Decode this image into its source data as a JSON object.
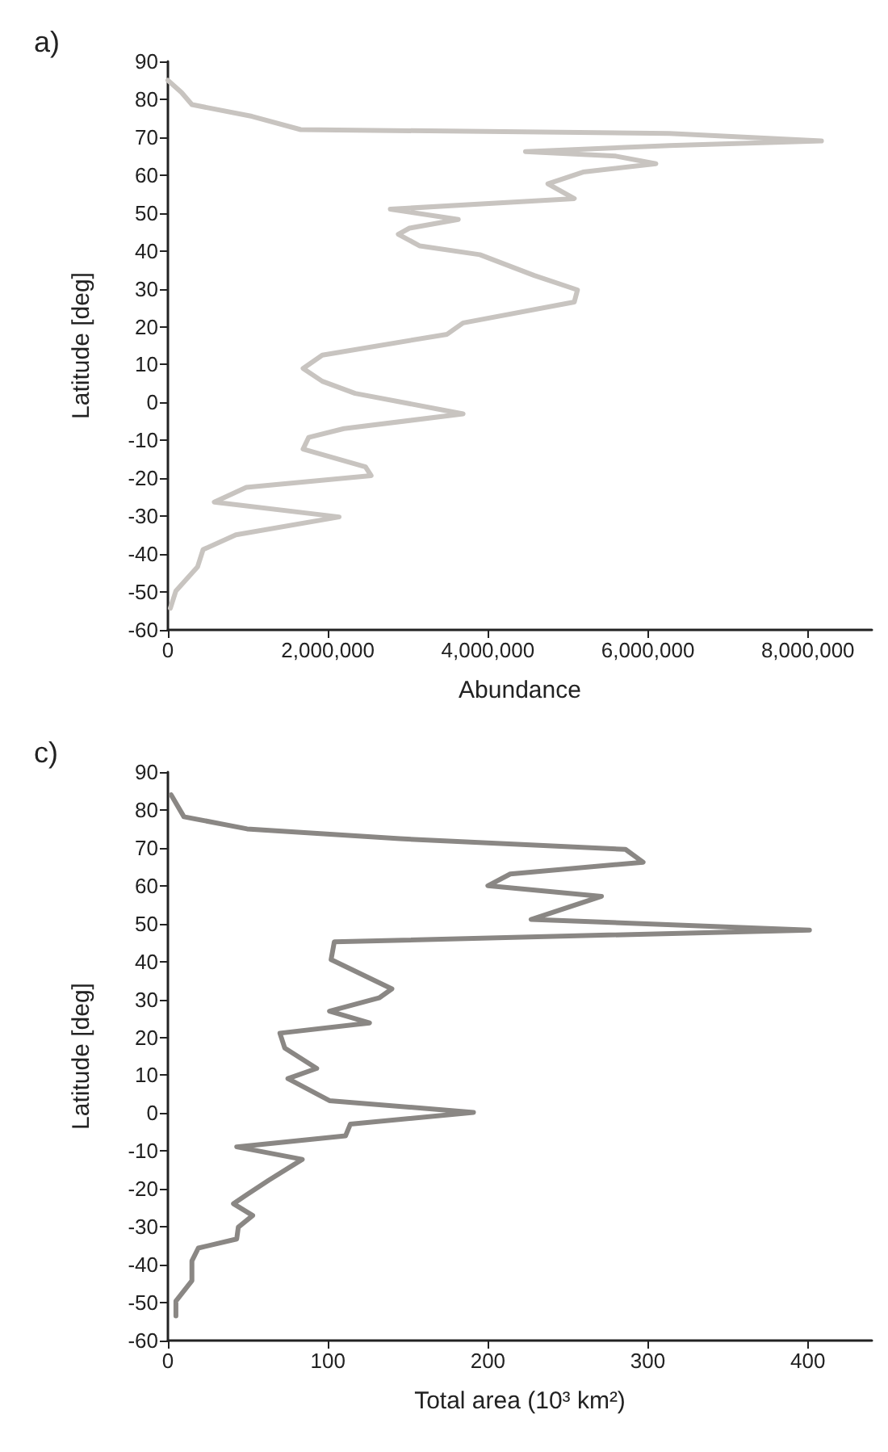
{
  "chart_data": [
    {
      "type": "line",
      "title": "a)",
      "xlabel": "Abundance",
      "ylabel": "Latitude [deg]",
      "marker": "none",
      "line_style": "solid",
      "grid": false,
      "xlim": [
        0,
        8800000
      ],
      "xticks": [
        0,
        {
          "value": 2000000,
          "label": "2,000,000"
        },
        {
          "value": 4000000,
          "label": "4,000,000"
        },
        {
          "value": 6000000,
          "label": "6,000,000"
        },
        {
          "value": 8000000,
          "label": "8,000,000"
        }
      ],
      "ylim": [
        -60,
        90
      ],
      "yticks": [
        -60,
        -50,
        -40,
        -30,
        -20,
        -10,
        0,
        10,
        20,
        30,
        40,
        50,
        60,
        70,
        80,
        90
      ],
      "series": [
        {
          "color": "#c8c4c0",
          "x": [
            0,
            170000,
            300000,
            1050000,
            1660000,
            6270000,
            8170000,
            6270000,
            4470000,
            5600000,
            6100000,
            5190000,
            4750000,
            5080000,
            2780000,
            3630000,
            3020000,
            2880000,
            3150000,
            3900000,
            4580000,
            5120000,
            5080000,
            3690000,
            3490000,
            1930000,
            1690000,
            1930000,
            2340000,
            3690000,
            2200000,
            1760000,
            1690000,
            2470000,
            2540000,
            980000,
            580000,
            2140000,
            850000,
            440000,
            370000,
            100000,
            30000
          ],
          "values": [
            85,
            81.8,
            78.6,
            75.5,
            72,
            71,
            69,
            67.8,
            66.2,
            65,
            63,
            60.8,
            57.7,
            53.8,
            51,
            48.3,
            46,
            44.4,
            41.3,
            39,
            33.5,
            29.7,
            26.5,
            21,
            18,
            12.5,
            9,
            5.6,
            2.4,
            -3,
            -6.9,
            -9.2,
            -12.3,
            -17,
            -19.3,
            -22.4,
            -26.3,
            -30.2,
            -34.9,
            -38.8,
            -43.4,
            -49.7,
            -54.3
          ]
        }
      ]
    },
    {
      "type": "line",
      "title": "c)",
      "xlabel": "Total area (10³ km²)",
      "ylabel": "Latitude [deg]",
      "marker": "none",
      "line_style": "solid",
      "grid": false,
      "xlim": [
        0,
        440
      ],
      "xticks": [
        0,
        100,
        200,
        300,
        400
      ],
      "ylim": [
        -60,
        90
      ],
      "yticks": [
        -60,
        -50,
        -40,
        -30,
        -20,
        -10,
        0,
        10,
        20,
        30,
        40,
        50,
        60,
        70,
        80,
        90
      ],
      "series": [
        {
          "color": "#8a8784",
          "x": [
            2,
            10,
            49.5,
            145,
            286,
            297,
            214,
            200,
            271,
            227,
            401,
            104,
            102,
            140,
            132,
            101,
            126,
            70,
            73,
            93,
            75,
            101,
            191,
            114,
            111,
            43,
            84,
            63,
            49,
            41,
            53,
            44,
            43,
            19,
            15,
            15,
            5,
            5
          ],
          "values": [
            84,
            78.2,
            75,
            72.4,
            69.6,
            66.2,
            63.1,
            60,
            57.2,
            51.1,
            48.3,
            45.2,
            40.5,
            32.8,
            30.4,
            26.9,
            23.8,
            21.1,
            17.2,
            11.8,
            9.1,
            3.3,
            0.2,
            -2.9,
            -6,
            -8.9,
            -12.2,
            -17.7,
            -21.6,
            -23.9,
            -27,
            -30.1,
            -33.2,
            -35.6,
            -39,
            -44.2,
            -49.6,
            -53.5
          ]
        }
      ]
    }
  ]
}
